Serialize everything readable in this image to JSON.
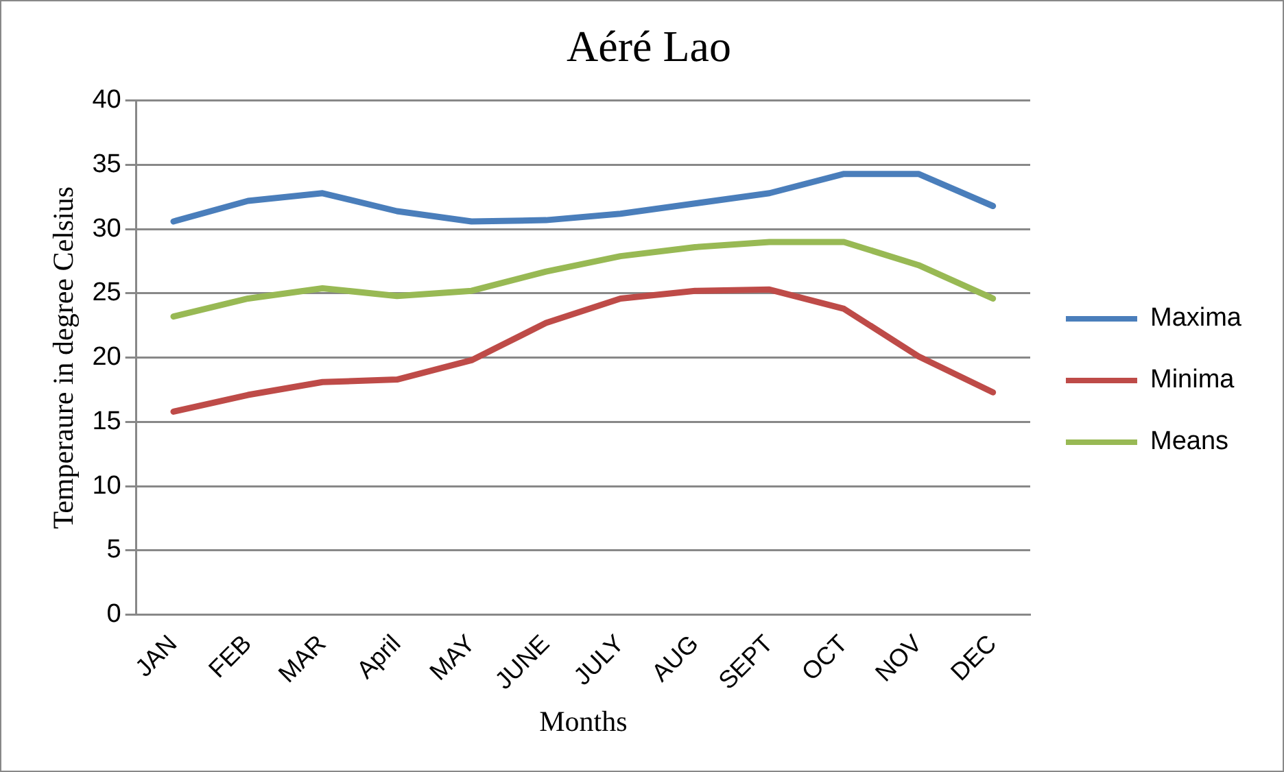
{
  "chart_data": {
    "type": "line",
    "title": "Aéré Lao",
    "xlabel": "Months",
    "ylabel": "Temperaure in degree Celsius",
    "categories": [
      "JAN",
      "FEB",
      "MAR",
      "April",
      "MAY",
      "JUNE",
      "JULY",
      "AUG",
      "SEPT",
      "OCT",
      "NOV",
      "DEC"
    ],
    "series": [
      {
        "name": "Maxima",
        "color": "#4a7ebb",
        "values": [
          30.6,
          32.2,
          32.8,
          31.4,
          30.6,
          30.7,
          31.2,
          32.0,
          32.8,
          34.3,
          34.3,
          31.8
        ]
      },
      {
        "name": "Minima",
        "color": "#be4b48",
        "values": [
          15.8,
          17.1,
          18.1,
          18.3,
          19.8,
          22.7,
          24.6,
          25.2,
          25.3,
          23.8,
          20.1,
          17.3
        ]
      },
      {
        "name": "Means",
        "color": "#98b954",
        "values": [
          23.2,
          24.6,
          25.4,
          24.8,
          25.2,
          26.7,
          27.9,
          28.6,
          29.0,
          29.0,
          27.2,
          24.6
        ]
      }
    ],
    "ylim": [
      0,
      40
    ],
    "yticks": [
      0,
      5,
      10,
      15,
      20,
      25,
      30,
      35,
      40
    ],
    "grid": "y",
    "legend": "right",
    "marker": "none",
    "line_style": "solid"
  }
}
